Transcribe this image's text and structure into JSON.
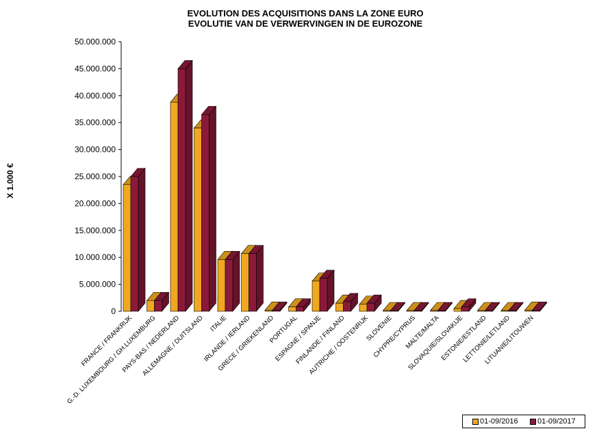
{
  "chart_data": {
    "type": "bar",
    "title_lines": [
      "EVOLUTION DES ACQUISITIONS DANS LA ZONE EURO",
      "EVOLUTIE VAN DE VERWERVINGEN IN DE EUROZONE"
    ],
    "ylabel": "X 1.000 €",
    "ylim": [
      0,
      50000000
    ],
    "ytick_labels": [
      "0",
      "5.000.000",
      "10.000.000",
      "15.000.000",
      "20.000.000",
      "25.000.000",
      "30.000.000",
      "35.000.000",
      "40.000.000",
      "45.000.000",
      "50.000.000"
    ],
    "ytick_values": [
      0,
      5000000,
      10000000,
      15000000,
      20000000,
      25000000,
      30000000,
      35000000,
      40000000,
      45000000,
      50000000
    ],
    "categories": [
      "FRANCE / FRANKRIJK",
      "G.-D. LUXEMBOURG / GH.LUXEMBURG",
      "PAYS-BAS / NEDERLAND",
      "ALLEMAGNE / DUITSLAND",
      "ITALIE",
      "IRLANDE / IERLAND",
      "GRECE / GRIEKENLAND",
      "PORTUGAL",
      "ESPAGNE / SPANJE",
      "FINLANDE / FINLAND",
      "AUTRICHE / OOSTENRIJK",
      "SLOVENIE",
      "CHYPRE/CYPRUS",
      "MALTE/MALTA",
      "SLOVAQUIE/SLOVAKIJE",
      "ESTONIE/ESTLAND",
      "LETTONIE/LETLAND",
      "LITUANIE/LITOUWEN"
    ],
    "series": [
      {
        "name": "01-09/2016",
        "color": "#f0a820",
        "values": [
          23500000,
          2000000,
          38800000,
          34000000,
          9600000,
          10700000,
          200000,
          800000,
          5600000,
          1500000,
          1300000,
          100000,
          50000,
          50000,
          500000,
          50000,
          100000,
          200000
        ]
      },
      {
        "name": "01-09/2017",
        "color": "#8b1a3a",
        "values": [
          25000000,
          2000000,
          45000000,
          36500000,
          9600000,
          10700000,
          200000,
          800000,
          6100000,
          1800000,
          1500000,
          100000,
          50000,
          50000,
          800000,
          50000,
          100000,
          200000
        ]
      }
    ],
    "grid": false,
    "legend_position": "bottom-right"
  }
}
